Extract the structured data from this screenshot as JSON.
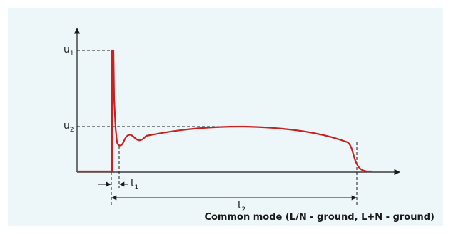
{
  "diagram": {
    "labels": {
      "u1": "u",
      "u1_sub": "1",
      "u2": "u",
      "u2_sub": "2",
      "t1": "t",
      "t1_sub": "1",
      "t2": "t",
      "t2_sub": "2"
    },
    "caption": "Common mode (L/N - ground, L+N - ground)",
    "colors": {
      "background_panel": "#edf6f9",
      "waveform": "#cc1f1f",
      "axis": "#1a1a1a"
    }
  }
}
